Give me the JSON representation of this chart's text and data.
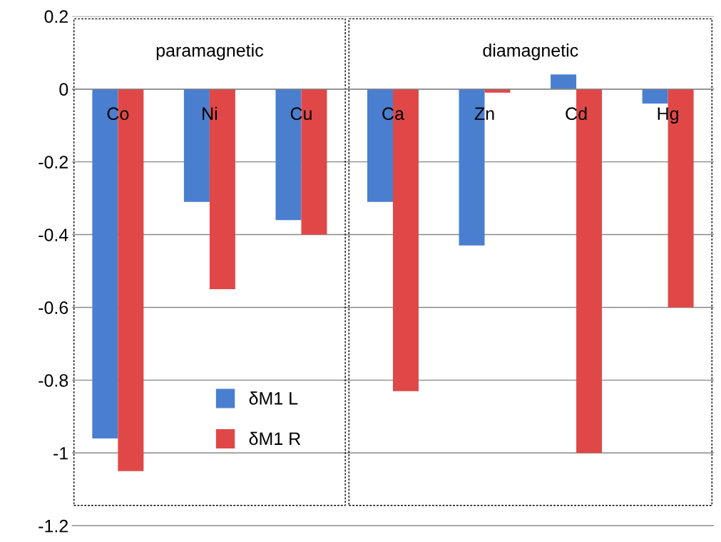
{
  "chart_data": {
    "type": "bar",
    "categories": [
      "Co",
      "Ni",
      "Cu",
      "Ca",
      "Zn",
      "Cd",
      "Hg"
    ],
    "series": [
      {
        "name": "δM1 L",
        "color": "#4a7fd0",
        "values": [
          -0.96,
          -0.31,
          -0.36,
          -0.31,
          -0.43,
          0.04,
          -0.04
        ]
      },
      {
        "name": "δM1 R",
        "color": "#e04848",
        "values": [
          -1.05,
          -0.55,
          -0.4,
          -0.83,
          -0.01,
          -1.0,
          -0.6
        ]
      }
    ],
    "ylim": [
      -1.2,
      0.2
    ],
    "yticks": [
      0.2,
      0,
      -0.2,
      -0.4,
      -0.6,
      -0.8,
      -1,
      -1.2
    ],
    "annotations": [
      "paramagnetic",
      "diamagnetic"
    ],
    "grid": "y",
    "legend": "bottom left",
    "tick_labels": "y"
  }
}
